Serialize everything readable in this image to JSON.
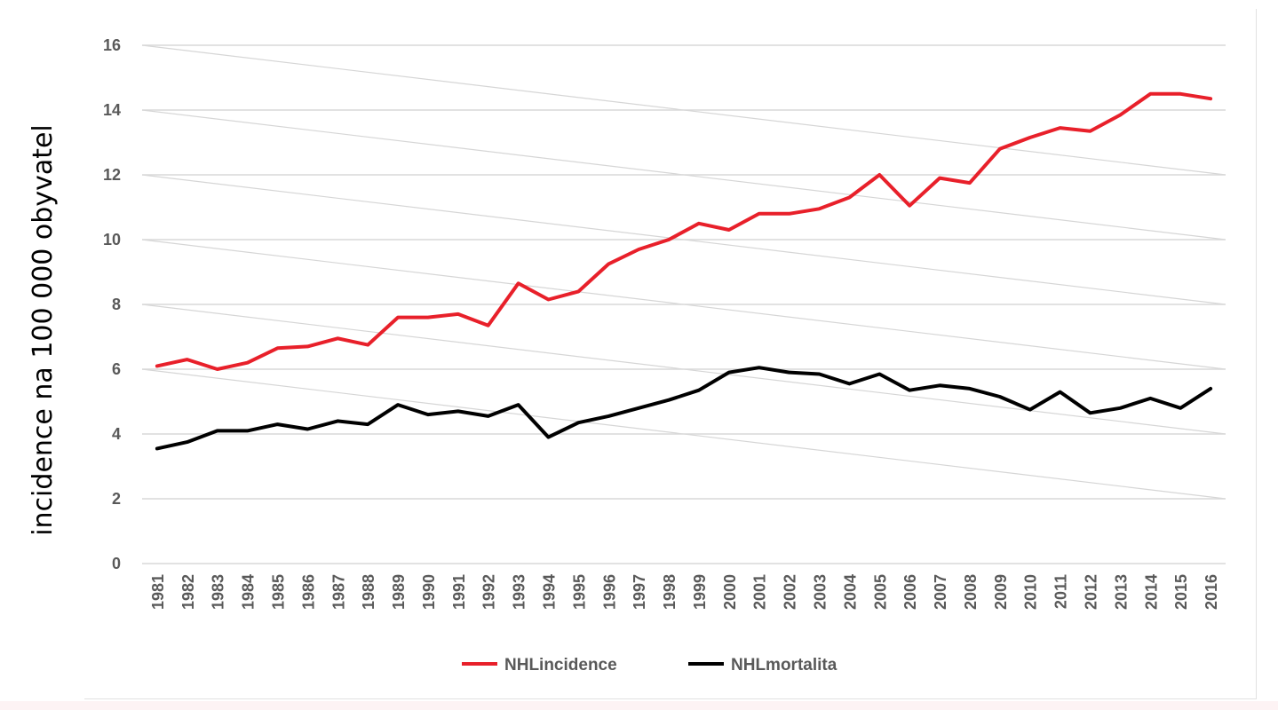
{
  "chart_data": {
    "type": "line",
    "ylabel": "incidence na 100 000 obyvatel",
    "xlabel": "",
    "title": "",
    "ylim": [
      0,
      16
    ],
    "y_ticks": [
      "0",
      "2",
      "4",
      "6",
      "8",
      "10",
      "12",
      "14",
      "16"
    ],
    "grid": true,
    "legend_position": "bottom",
    "x": [
      "1981",
      "1982",
      "1983",
      "1984",
      "1985",
      "1986",
      "1987",
      "1988",
      "1989",
      "1990",
      "1991",
      "1992",
      "1993",
      "1994",
      "1995",
      "1996",
      "1997",
      "1998",
      "1999",
      "2000",
      "2001",
      "2002",
      "2003",
      "2004",
      "2005",
      "2006",
      "2007",
      "2008",
      "2009",
      "2010",
      "2011",
      "2012",
      "2013",
      "2014",
      "2015",
      "2016"
    ],
    "series": [
      {
        "name": "NHLincidence",
        "color": "#e8202a",
        "values": [
          6.1,
          6.3,
          6.0,
          6.2,
          6.65,
          6.7,
          6.95,
          6.75,
          7.6,
          7.6,
          7.7,
          7.35,
          8.65,
          8.15,
          8.4,
          9.25,
          9.7,
          10.0,
          10.5,
          10.3,
          10.8,
          10.8,
          10.95,
          11.3,
          12.0,
          11.05,
          11.9,
          11.75,
          12.8,
          13.15,
          13.45,
          13.35,
          13.85,
          14.5,
          14.5,
          14.35
        ]
      },
      {
        "name": "NHLmortalita",
        "color": "#000000",
        "values": [
          3.55,
          3.75,
          4.1,
          4.1,
          4.3,
          4.15,
          4.4,
          4.3,
          4.9,
          4.6,
          4.7,
          4.55,
          4.9,
          3.9,
          4.35,
          4.55,
          4.8,
          5.05,
          5.35,
          5.9,
          6.05,
          5.9,
          5.85,
          5.55,
          5.85,
          5.35,
          5.5,
          5.4,
          5.15,
          4.75,
          5.3,
          4.65,
          4.8,
          5.1,
          4.8,
          5.4
        ]
      }
    ]
  }
}
